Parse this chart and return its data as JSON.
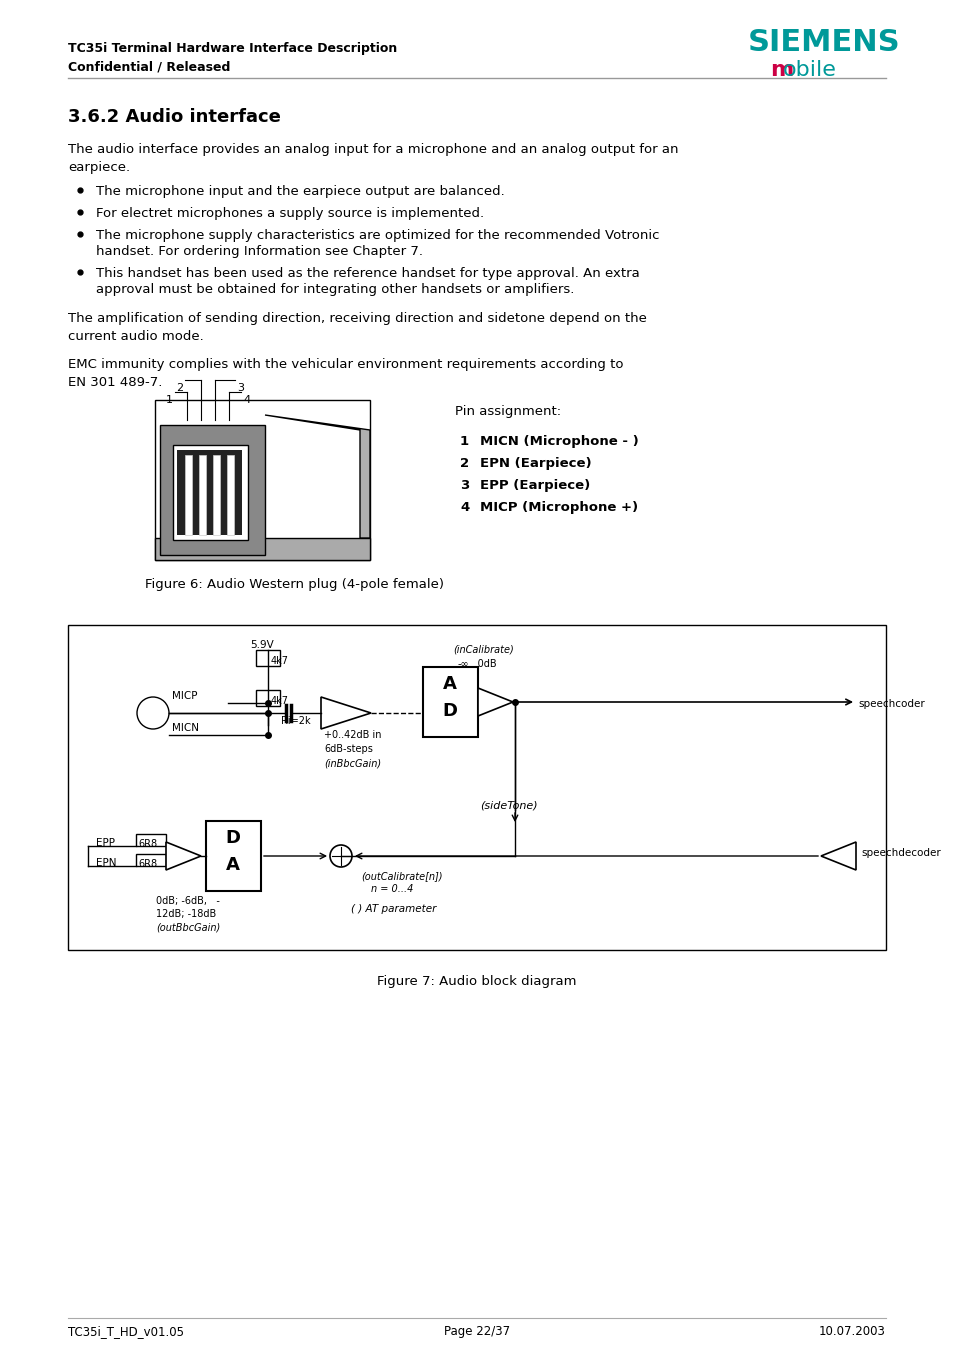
{
  "page_width": 9.54,
  "page_height": 13.51,
  "bg_color": "#ffffff",
  "header_line1": "TC35i Terminal Hardware Interface Description",
  "header_line2": "Confidential / Released",
  "siemens_text": "SIEMENS",
  "siemens_color": "#009999",
  "mobile_m_color": "#cc0044",
  "mobile_rest_color": "#009999",
  "section_title": "3.6.2 Audio interface",
  "para1_line1": "The audio interface provides an analog input for a microphone and an analog output for an",
  "para1_line2": "earpiece.",
  "bullet1": "The microphone input and the earpiece output are balanced.",
  "bullet2": "For electret microphones a supply source is implemented.",
  "bullet3a": "The microphone supply characteristics are optimized for the recommended Votronic",
  "bullet3b": "handset. For ordering Information see Chapter 7.",
  "bullet4a": "This handset has been used as the reference handset for type approval. An extra",
  "bullet4b": "approval must be obtained for integrating other handsets or amplifiers.",
  "para2_line1": "The amplification of sending direction, receiving direction and sidetone depend on the",
  "para2_line2": "current audio mode.",
  "para3_line1": "EMC immunity complies with the vehicular environment requirements according to",
  "para3_line2": "EN 301 489-7.",
  "fig6_caption": "Figure 6: Audio Western plug (4-pole female)",
  "fig7_caption": "Figure 7: Audio block diagram",
  "pin_assignment": "Pin assignment:",
  "pin1": "1    MICN (Microphone - )",
  "pin2": "2    EPN (Earpiece)",
  "pin3": "3    EPP (Earpiece)",
  "pin4": "4    MICP (Microphone +)",
  "footer_left": "TC35i_T_HD_v01.05",
  "footer_center": "Page 22/37",
  "footer_right": "10.07.2003"
}
